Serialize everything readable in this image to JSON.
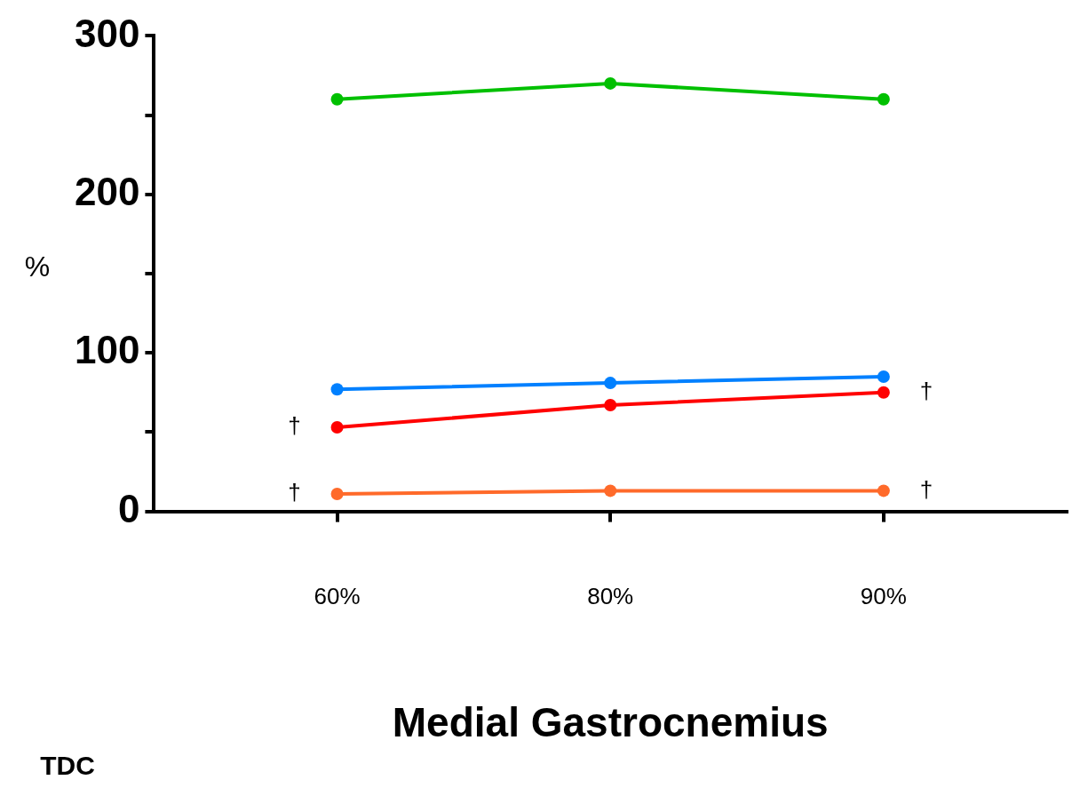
{
  "chart_data": {
    "type": "line",
    "xlabel": "Medial Gastrocnemius",
    "ylabel": "%",
    "categories": [
      "60%",
      "80%",
      "90%"
    ],
    "series": [
      {
        "color": "#00c000",
        "values": [
          260,
          270,
          260
        ]
      },
      {
        "color": "#0080ff",
        "values": [
          77,
          81,
          85
        ]
      },
      {
        "color": "#ff0000",
        "values": [
          53,
          67,
          75
        ]
      },
      {
        "color": "#ff6a2a",
        "values": [
          11,
          13,
          13
        ]
      }
    ],
    "ylim": [
      0,
      300
    ],
    "yticks": [
      0,
      {
        "value": 50,
        "label": null
      },
      100,
      {
        "value": 150,
        "label": null
      },
      200,
      {
        "value": 250,
        "label": null
      },
      300
    ],
    "marker": "circle",
    "line_style": "solid",
    "grid": false,
    "legend": false,
    "annotations": [
      {
        "text": "†",
        "x": "60%",
        "y": 53
      },
      {
        "text": "†",
        "x": "60%",
        "y": 11
      },
      {
        "text": "†",
        "x": "90%",
        "y": 75
      },
      {
        "text": "†",
        "x": "90%",
        "y": 13
      },
      "TDC"
    ]
  }
}
